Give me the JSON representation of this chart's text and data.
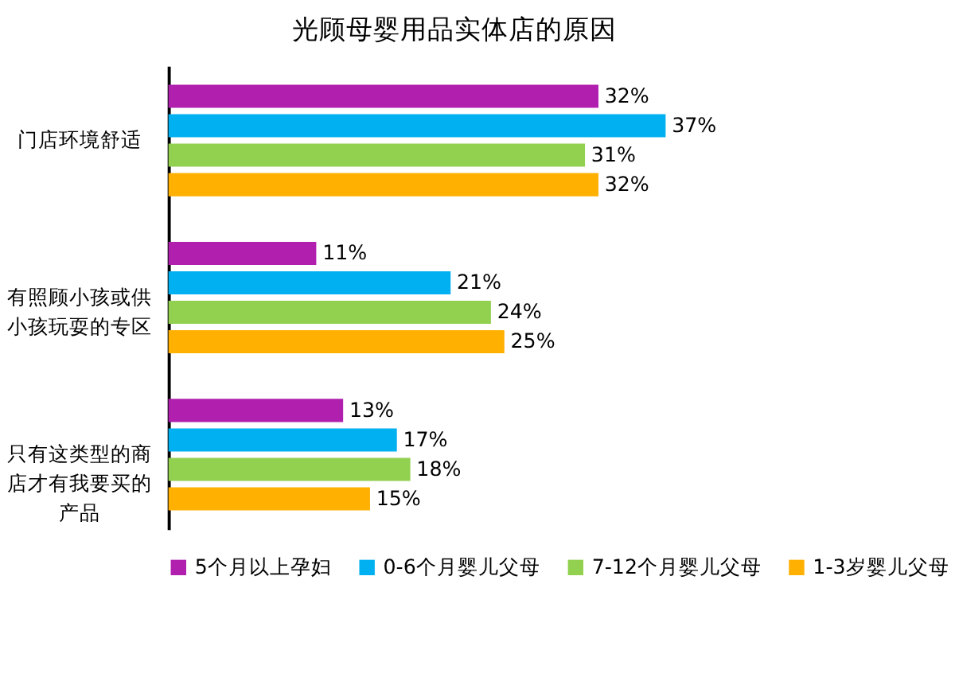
{
  "chart_data": {
    "type": "bar",
    "orientation": "horizontal",
    "title": "光顾母婴用品实体店的原因",
    "categories": [
      "门店环境舒适",
      "有照顾小孩或供小孩玩耍的专区",
      "只有这类型的商店才有我要买的产品"
    ],
    "series": [
      {
        "name": "5个月以上孕妇",
        "color": "#b01fae",
        "values": [
          32,
          11,
          13
        ],
        "value_labels": [
          "32%",
          "11%",
          "13%"
        ]
      },
      {
        "name": "0-6个月婴儿父母",
        "color": "#00b0f0",
        "values": [
          37,
          21,
          17
        ],
        "value_labels": [
          "37%",
          "21%",
          "17%"
        ]
      },
      {
        "name": "7-12个月婴儿父母",
        "color": "#92d050",
        "values": [
          31,
          24,
          18
        ],
        "value_labels": [
          "31%",
          "24%",
          "18%"
        ]
      },
      {
        "name": "1-3岁婴儿父母",
        "color": "#ffb000",
        "values": [
          32,
          25,
          15
        ],
        "value_labels": [
          "32%",
          "25%",
          "15%"
        ]
      }
    ],
    "legend": "bottom",
    "grid": false
  }
}
